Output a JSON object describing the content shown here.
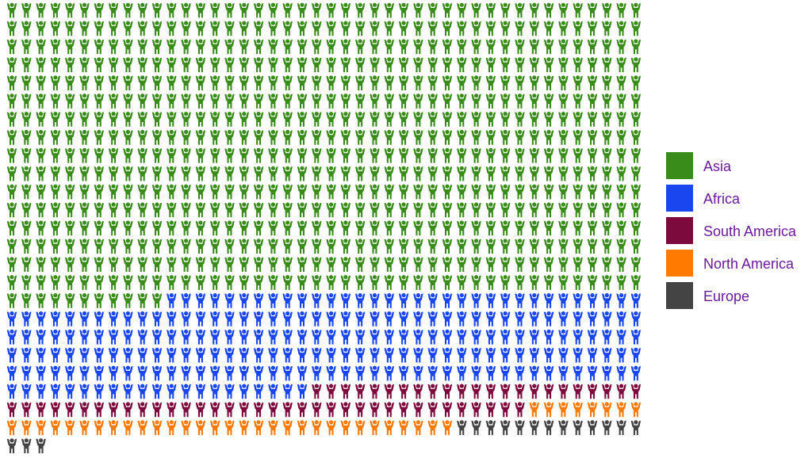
{
  "chart_data": {
    "type": "pictograph",
    "series": [
      {
        "name": "Asia",
        "color": "#3a8c1a",
        "value": 715
      },
      {
        "name": "Africa",
        "color": "#1a46f0",
        "value": 230
      },
      {
        "name": "South America",
        "color": "#7d0a3c",
        "value": 59
      },
      {
        "name": "North America",
        "color": "#ff7a00",
        "value": 39
      },
      {
        "name": "Europe",
        "color": "#444444",
        "value": 16
      }
    ]
  }
}
